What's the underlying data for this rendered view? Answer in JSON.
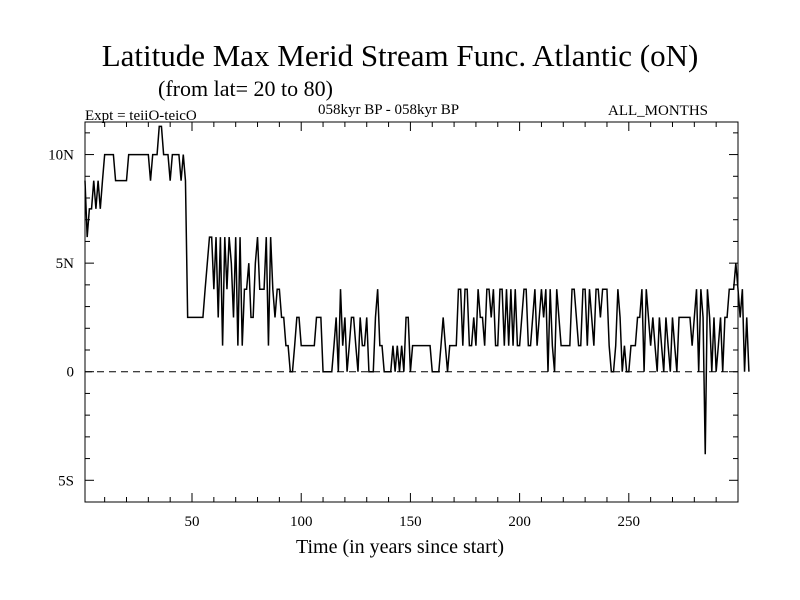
{
  "header": {
    "title": "Latitude Max Merid Stream Func. Atlantic (oN)",
    "subtitle": "(from lat= 20 to 80)",
    "expt": "Expt = teiiO-teicO",
    "period": "058kyr BP - 058kyr BP",
    "months": "ALL_MONTHS"
  },
  "chart_data": {
    "type": "line",
    "title": "Latitude Max Merid Stream Func. Atlantic (oN)",
    "xlabel": "Time (in years since start)",
    "ylabel": "",
    "xlim": [
      1,
      300
    ],
    "ylim": [
      -6,
      11.5
    ],
    "x_ticks": [
      {
        "value": 50,
        "label": "50"
      },
      {
        "value": 100,
        "label": "100"
      },
      {
        "value": 150,
        "label": "150"
      },
      {
        "value": 200,
        "label": "200"
      },
      {
        "value": 250,
        "label": "250"
      }
    ],
    "y_ticks": [
      {
        "value": 10,
        "label": "10N"
      },
      {
        "value": 5,
        "label": "5N"
      },
      {
        "value": 0,
        "label": "0"
      },
      {
        "value": -5,
        "label": "5S"
      }
    ],
    "reference_line": {
      "y": 0,
      "style": "dashed"
    },
    "series": [
      {
        "x_start": 1,
        "x_step": 1,
        "values": [
          8.8,
          6.2,
          7.5,
          7.5,
          8.8,
          7.5,
          8.8,
          7.5,
          8.8,
          10,
          10,
          10,
          10,
          10,
          8.8,
          8.8,
          8.8,
          8.8,
          8.8,
          8.8,
          10,
          10,
          10,
          10,
          10,
          10,
          10,
          10,
          10,
          10,
          8.8,
          10,
          10,
          10,
          11.3,
          11.3,
          10,
          10,
          10,
          8.8,
          10,
          10,
          10,
          10,
          8.8,
          10,
          8.8,
          2.5,
          2.5,
          2.5,
          2.5,
          2.5,
          2.5,
          2.5,
          2.5,
          3.8,
          5,
          6.2,
          6.2,
          3.8,
          6.2,
          2.5,
          6.2,
          1.2,
          6.2,
          3.8,
          6.2,
          5,
          2.5,
          6.2,
          1.2,
          6.2,
          1.2,
          3.8,
          3.8,
          5,
          2.5,
          2.5,
          5,
          6.2,
          3.8,
          3.8,
          3.8,
          6.2,
          1.2,
          6.2,
          3.8,
          2.5,
          3.8,
          3.8,
          2.5,
          2.5,
          1.2,
          1.2,
          0,
          0,
          1.2,
          2.5,
          2.5,
          1.2,
          1.2,
          1.2,
          1.2,
          1.2,
          1.2,
          1.2,
          2.5,
          2.5,
          2.5,
          0,
          0,
          0,
          0,
          0,
          1.2,
          2.5,
          0,
          3.8,
          1.2,
          2.5,
          0,
          1.2,
          2.5,
          2.5,
          1.2,
          0,
          2.5,
          1.2,
          1.2,
          2.5,
          0,
          0,
          0,
          2.5,
          3.8,
          1.2,
          1.2,
          0,
          0,
          0,
          0,
          1.2,
          0,
          1.2,
          0,
          1.2,
          0,
          2.5,
          2.5,
          0,
          1.2,
          1.2,
          1.2,
          1.2,
          1.2,
          1.2,
          1.2,
          1.2,
          1.2,
          0,
          0,
          0,
          0,
          1.2,
          2.5,
          1.2,
          0,
          1.2,
          1.2,
          1.2,
          1.2,
          3.8,
          3.8,
          1.2,
          3.8,
          3.8,
          1.2,
          1.2,
          2.5,
          1.2,
          3.8,
          2.5,
          2.5,
          1.2,
          3.8,
          3.8,
          2.5,
          3.8,
          1.2,
          1.2,
          3.8,
          3.8,
          1.2,
          3.8,
          1.2,
          3.8,
          1.2,
          3.8,
          1.2,
          1.2,
          2.5,
          3.8,
          3.8,
          1.2,
          1.2,
          2.5,
          3.8,
          1.2,
          2.5,
          3.8,
          2.5,
          3.8,
          0,
          3.8,
          1.2,
          0,
          3.8,
          2.5,
          1.2,
          1.2,
          1.2,
          1.2,
          1.2,
          3.8,
          3.8,
          2.5,
          1.2,
          1.2,
          3.8,
          3.8,
          1.2,
          3.8,
          2.5,
          1.2,
          3.8,
          3.8,
          2.5,
          3.8,
          3.8,
          3.8,
          1.2,
          0,
          0,
          1.2,
          3.8,
          2.5,
          0,
          1.2,
          0,
          0,
          1.2,
          1.2,
          1.2,
          2.5,
          2.5,
          3.8,
          0,
          3.8,
          2.5,
          1.2,
          2.5,
          1.2,
          0,
          2.5,
          1.2,
          0,
          2.5,
          1.2,
          0,
          2.5,
          1.2,
          0,
          2.5,
          2.5,
          2.5,
          2.5,
          2.5,
          2.5,
          1.2,
          2.5,
          3.8,
          0,
          3.8,
          2.5,
          -3.8,
          3.8,
          2.5,
          0,
          2.5,
          0,
          1.2,
          2.5,
          0,
          2.5,
          2.5,
          3.8,
          3.8,
          3.8,
          5,
          3.8,
          2.5,
          3.8,
          0,
          2.5,
          0
        ]
      }
    ]
  }
}
